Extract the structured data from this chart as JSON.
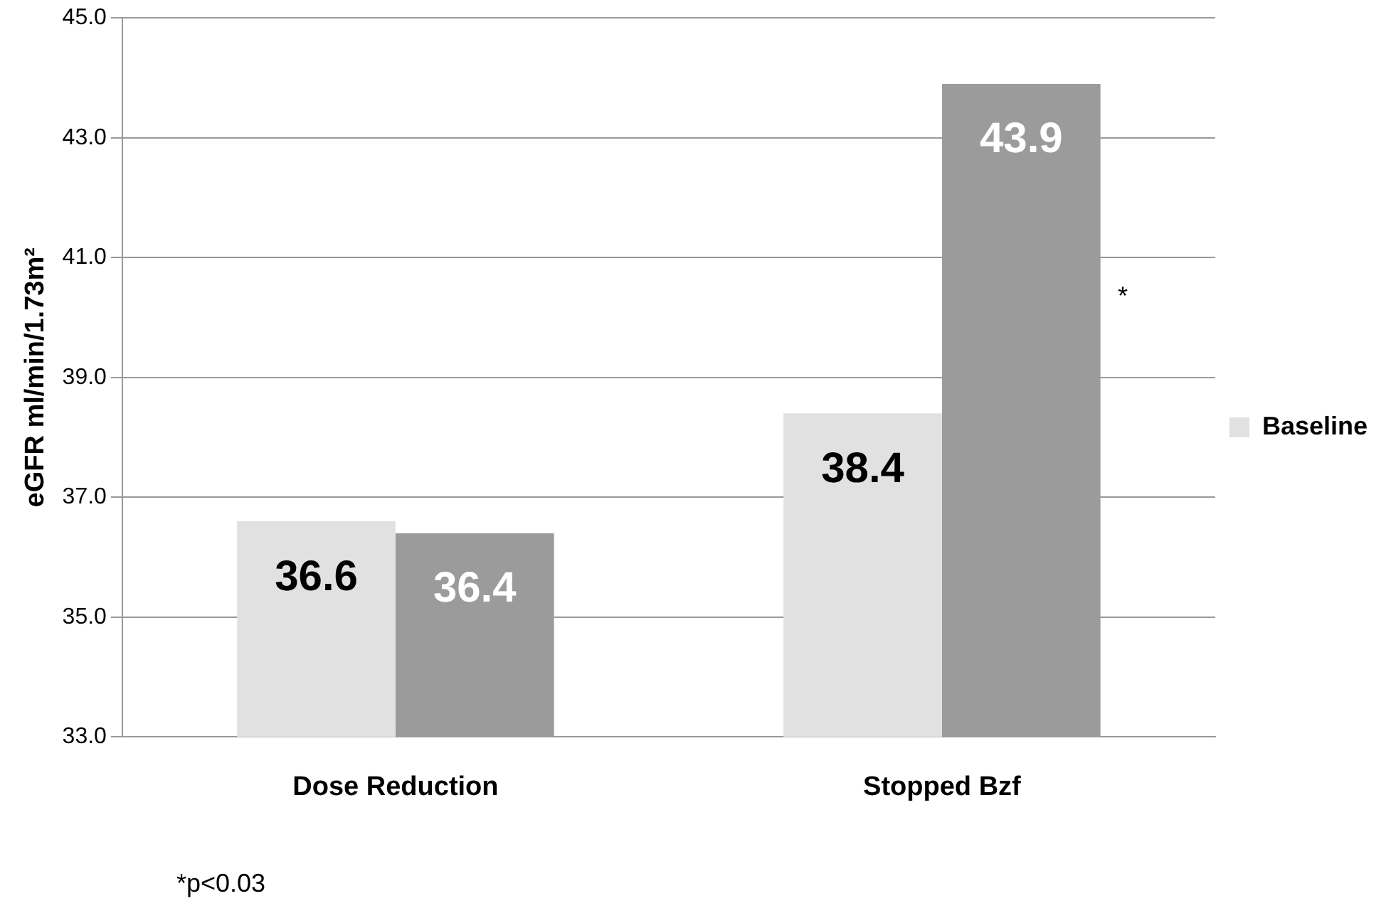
{
  "chart_data": {
    "type": "bar",
    "ylabel": "eGFR ml/min/1.73m²",
    "categories": [
      "Dose Reduction",
      "Stopped Bzf"
    ],
    "series": [
      {
        "name": "Baseline",
        "color": "#e0e1e0",
        "values": [
          36.6,
          38.4
        ]
      },
      {
        "color": "#9b9b9b",
        "values": [
          36.4,
          43.9
        ]
      }
    ],
    "ylim": [
      33,
      45
    ],
    "yticks": [
      {
        "value": 33,
        "label": "33.0"
      },
      {
        "value": 35,
        "label": "35.0"
      },
      {
        "value": 37,
        "label": "37.0"
      },
      {
        "value": 39,
        "label": "39.0"
      },
      {
        "value": 41,
        "label": "41.0"
      },
      {
        "value": 43,
        "label": "43.0"
      },
      {
        "value": 45,
        "label": "45.0"
      }
    ],
    "grid": "y",
    "legend": "right",
    "data_labels": true,
    "annotations": [
      "*",
      "*p<0.03"
    ]
  }
}
